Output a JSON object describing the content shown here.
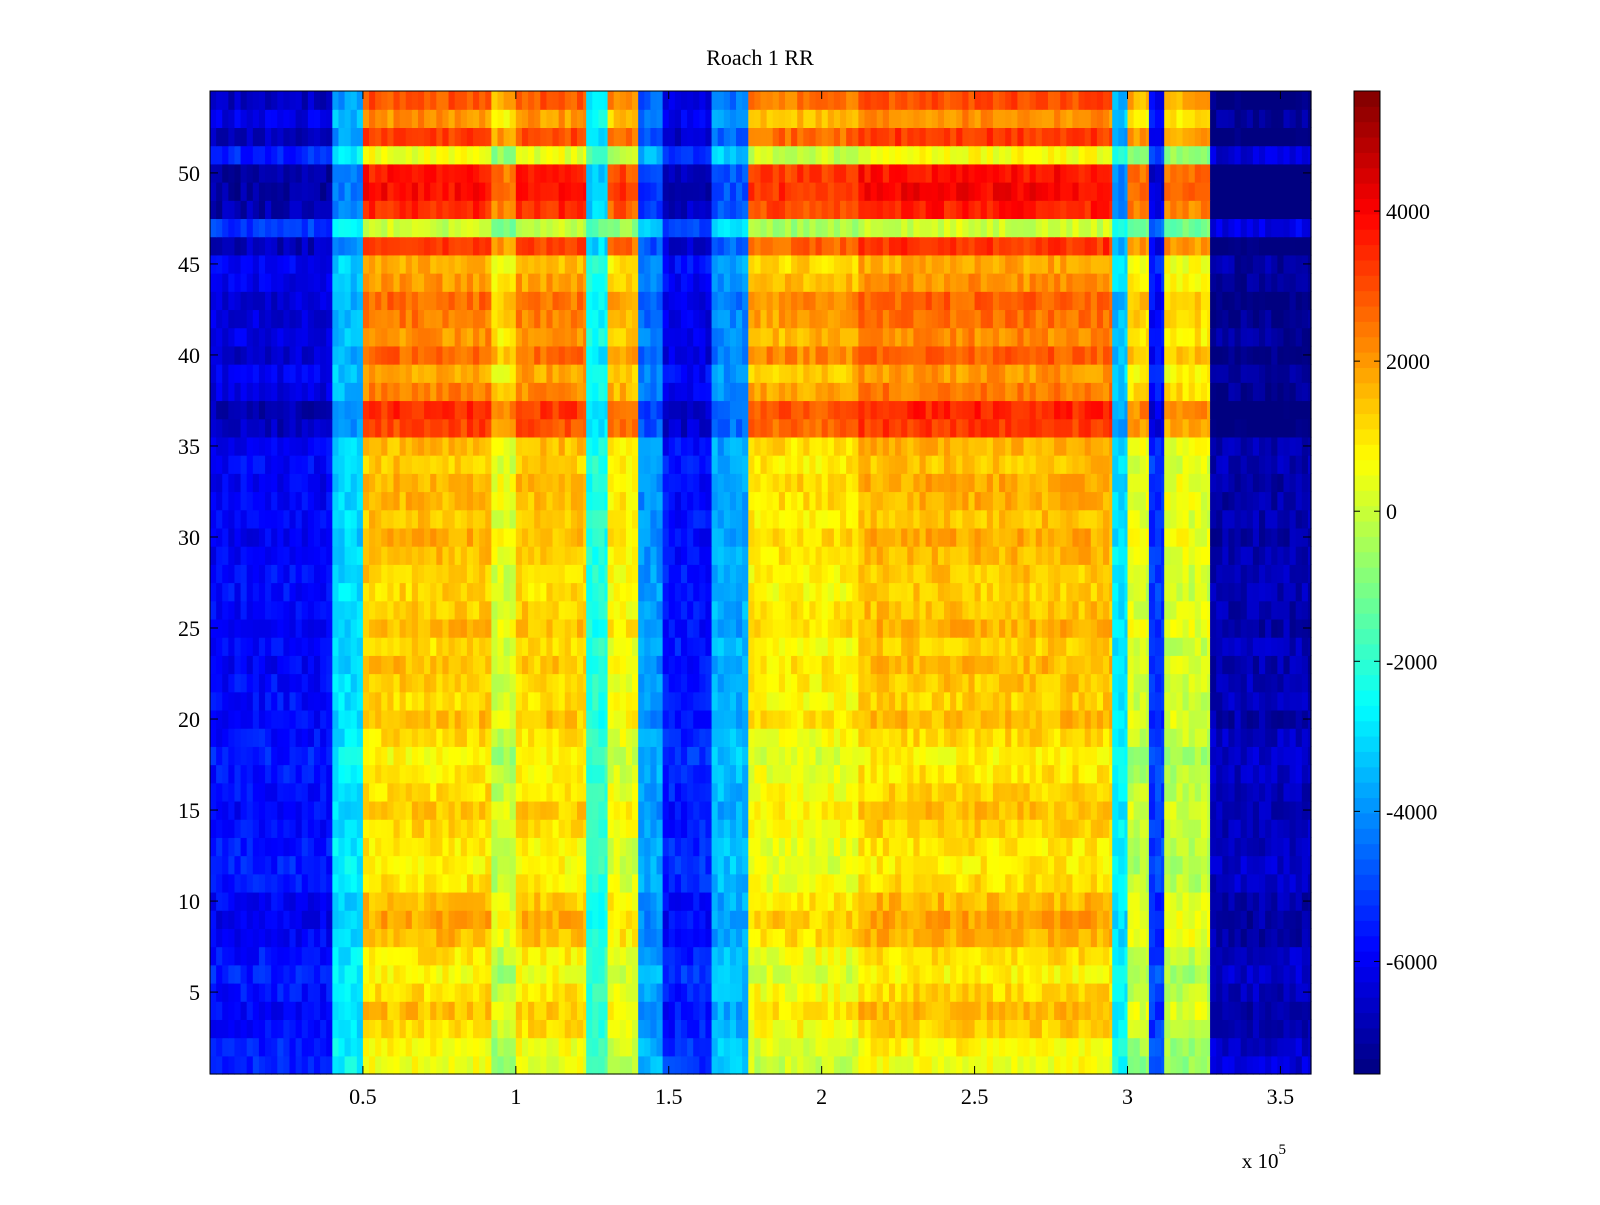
{
  "chart_data": {
    "type": "heatmap",
    "title": "Roach 1 RR",
    "xlabel": "",
    "ylabel": "",
    "colormap": "jet",
    "grid": false,
    "x_exponent_label": "x 10",
    "x_exponent_power": "5",
    "xlim": [
      0,
      360000
    ],
    "ylim": [
      0.5,
      54.5
    ],
    "clim": [
      -7500,
      5600
    ],
    "x_ticks": [
      {
        "value": 50000,
        "label": "0.5"
      },
      {
        "value": 100000,
        "label": "1"
      },
      {
        "value": 150000,
        "label": "1.5"
      },
      {
        "value": 200000,
        "label": "2"
      },
      {
        "value": 250000,
        "label": "2.5"
      },
      {
        "value": 300000,
        "label": "3"
      },
      {
        "value": 350000,
        "label": "3.5"
      }
    ],
    "y_ticks": [
      {
        "value": 5,
        "label": "5"
      },
      {
        "value": 10,
        "label": "10"
      },
      {
        "value": 15,
        "label": "15"
      },
      {
        "value": 20,
        "label": "20"
      },
      {
        "value": 25,
        "label": "25"
      },
      {
        "value": 30,
        "label": "30"
      },
      {
        "value": 35,
        "label": "35"
      },
      {
        "value": 40,
        "label": "40"
      },
      {
        "value": 45,
        "label": "45"
      },
      {
        "value": 50,
        "label": "50"
      }
    ],
    "colorbar_ticks": [
      {
        "value": 4000,
        "label": "4000"
      },
      {
        "value": 2000,
        "label": "2000"
      },
      {
        "value": 0,
        "label": "0"
      },
      {
        "value": -2000,
        "label": "-2000"
      },
      {
        "value": -4000,
        "label": "-4000"
      },
      {
        "value": -6000,
        "label": "-6000"
      }
    ],
    "column_segments": [
      {
        "x0": 0,
        "x1": 40000,
        "value": -5200
      },
      {
        "x0": 40000,
        "x1": 50000,
        "value": -2400
      },
      {
        "x0": 50000,
        "x1": 92000,
        "value": 900
      },
      {
        "x0": 92000,
        "x1": 100000,
        "value": -300
      },
      {
        "x0": 100000,
        "x1": 123000,
        "value": 800
      },
      {
        "x0": 123000,
        "x1": 130000,
        "value": -1500
      },
      {
        "x0": 130000,
        "x1": 140000,
        "value": 200
      },
      {
        "x0": 140000,
        "x1": 148000,
        "value": -3300
      },
      {
        "x0": 148000,
        "x1": 164000,
        "value": -5000
      },
      {
        "x0": 164000,
        "x1": 176000,
        "value": -3000
      },
      {
        "x0": 176000,
        "x1": 212000,
        "value": 400
      },
      {
        "x0": 212000,
        "x1": 295000,
        "value": 1000
      },
      {
        "x0": 295000,
        "x1": 300000,
        "value": -2200
      },
      {
        "x0": 300000,
        "x1": 307000,
        "value": -300
      },
      {
        "x0": 307000,
        "x1": 312000,
        "value": -4600
      },
      {
        "x0": 312000,
        "x1": 327000,
        "value": -300
      },
      {
        "x0": 327000,
        "x1": 360000,
        "value": -6200
      }
    ],
    "row_offsets": [
      {
        "y": 1,
        "value": -400
      },
      {
        "y": 2,
        "value": -200
      },
      {
        "y": 3,
        "value": 300
      },
      {
        "y": 4,
        "value": 600
      },
      {
        "y": 5,
        "value": 200
      },
      {
        "y": 6,
        "value": -200
      },
      {
        "y": 7,
        "value": 100
      },
      {
        "y": 8,
        "value": 700
      },
      {
        "y": 9,
        "value": 900
      },
      {
        "y": 10,
        "value": 600
      },
      {
        "y": 11,
        "value": 100
      },
      {
        "y": 12,
        "value": -100
      },
      {
        "y": 13,
        "value": 0
      },
      {
        "y": 14,
        "value": 300
      },
      {
        "y": 15,
        "value": 500
      },
      {
        "y": 16,
        "value": 200
      },
      {
        "y": 17,
        "value": 0
      },
      {
        "y": 18,
        "value": -200
      },
      {
        "y": 19,
        "value": 200
      },
      {
        "y": 20,
        "value": 600
      },
      {
        "y": 21,
        "value": 300
      },
      {
        "y": 22,
        "value": 400
      },
      {
        "y": 23,
        "value": 600
      },
      {
        "y": 24,
        "value": 300
      },
      {
        "y": 25,
        "value": 700
      },
      {
        "y": 26,
        "value": 500
      },
      {
        "y": 27,
        "value": 300
      },
      {
        "y": 28,
        "value": 400
      },
      {
        "y": 29,
        "value": 600
      },
      {
        "y": 30,
        "value": 800
      },
      {
        "y": 31,
        "value": 500
      },
      {
        "y": 32,
        "value": 700
      },
      {
        "y": 33,
        "value": 800
      },
      {
        "y": 34,
        "value": 500
      },
      {
        "y": 35,
        "value": 700
      },
      {
        "y": 36,
        "value": 2200
      },
      {
        "y": 37,
        "value": 2500
      },
      {
        "y": 38,
        "value": 1400
      },
      {
        "y": 39,
        "value": 1000
      },
      {
        "y": 40,
        "value": 1800
      },
      {
        "y": 41,
        "value": 1200
      },
      {
        "y": 42,
        "value": 1500
      },
      {
        "y": 43,
        "value": 1700
      },
      {
        "y": 44,
        "value": 1100
      },
      {
        "y": 45,
        "value": 800
      },
      {
        "y": 46,
        "value": 2300
      },
      {
        "y": 47,
        "value": -900
      },
      {
        "y": 48,
        "value": 2600
      },
      {
        "y": 49,
        "value": 3000
      },
      {
        "y": 50,
        "value": 2800
      },
      {
        "y": 51,
        "value": -400
      },
      {
        "y": 52,
        "value": 2200
      },
      {
        "y": 53,
        "value": 1200
      },
      {
        "y": 54,
        "value": 2000
      }
    ]
  }
}
